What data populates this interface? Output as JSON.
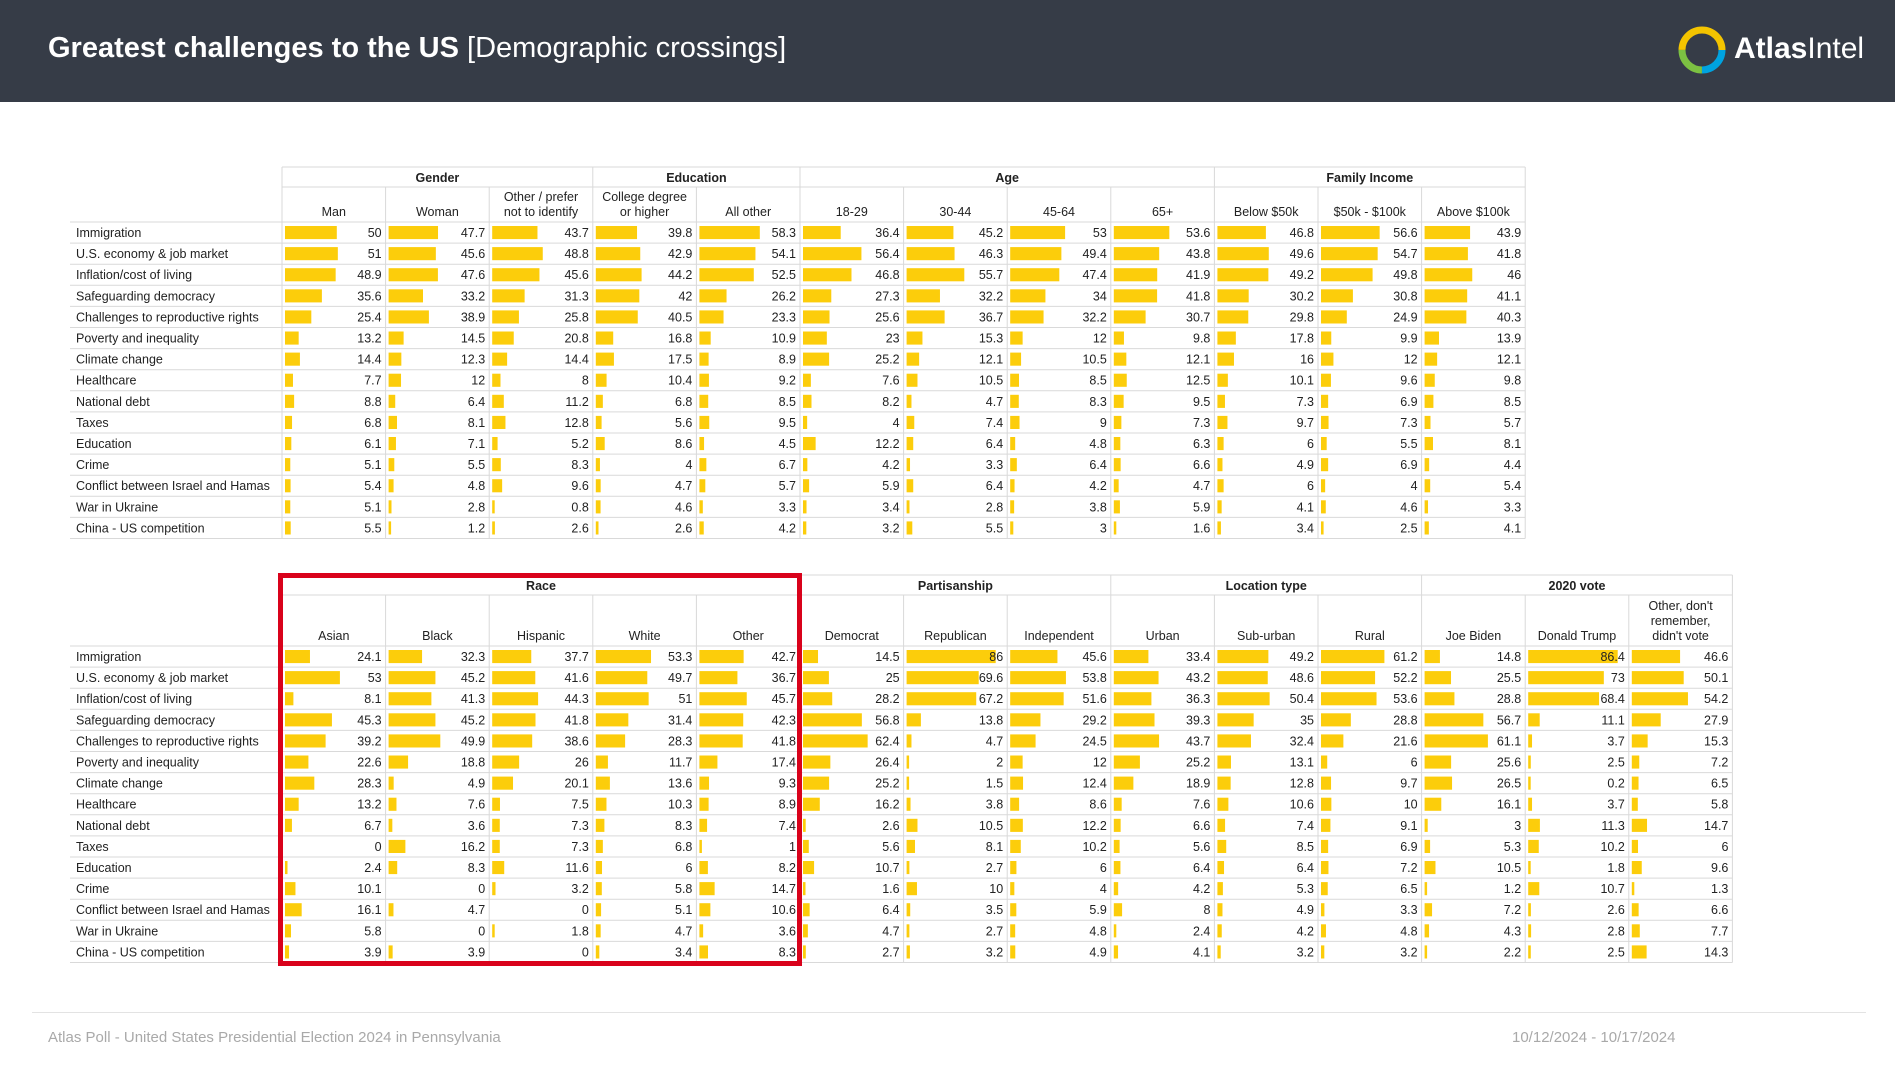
{
  "header": {
    "title_bold": "Greatest challenges to the US",
    "title_rest": " [Demographic crossings]",
    "brand_bold": "Atlas",
    "brand_rest": "Intel"
  },
  "colors": {
    "bar": "#fccd0b",
    "header_bg": "#363c47",
    "highlight": "#d9021b",
    "grid": "#d9d9d9"
  },
  "footer": {
    "left": "Atlas Poll - United States Presidential Election 2024 in Pennsylvania",
    "right": "10/12/2024 - 10/17/2024"
  },
  "chart_data": [
    {
      "type": "table",
      "title": "Greatest challenges to the US by Gender, Education, Age, Family Income",
      "categories": [
        "Immigration",
        "U.S. economy & job market",
        "Inflation/cost of living",
        "Safeguarding democracy",
        "Challenges to reproductive rights",
        "Poverty and inequality",
        "Climate change",
        "Healthcare",
        "National debt",
        "Taxes",
        "Education",
        "Crime",
        "Conflict between Israel and Hamas",
        "War in Ukraine",
        "China - US competition"
      ],
      "groups": [
        {
          "name": "Gender",
          "columns": [
            "Man",
            "Woman",
            "Other / prefer\nnot to identify"
          ]
        },
        {
          "name": "Education",
          "columns": [
            "College degree\nor higher",
            "All other"
          ]
        },
        {
          "name": "Age",
          "columns": [
            "18-29",
            "30-44",
            "45-64",
            "65+"
          ]
        },
        {
          "name": "Family Income",
          "columns": [
            "Below $50k",
            "$50k - $100k",
            "Above $100k"
          ]
        }
      ],
      "series": [
        {
          "name": "Man",
          "values": [
            50,
            51,
            48.9,
            35.6,
            25.4,
            13.2,
            14.4,
            7.7,
            8.8,
            6.8,
            6.1,
            5.1,
            5.4,
            5.1,
            5.5
          ]
        },
        {
          "name": "Woman",
          "values": [
            47.7,
            45.6,
            47.6,
            33.2,
            38.9,
            14.5,
            12.3,
            12,
            6.4,
            8.1,
            7.1,
            5.5,
            4.8,
            2.8,
            1.2
          ]
        },
        {
          "name": "Other / prefer not to identify",
          "values": [
            43.7,
            48.8,
            45.6,
            31.3,
            25.8,
            20.8,
            14.4,
            8,
            11.2,
            12.8,
            5.2,
            8.3,
            9.6,
            0.8,
            2.6
          ]
        },
        {
          "name": "College degree or higher",
          "values": [
            39.8,
            42.9,
            44.2,
            42,
            40.5,
            16.8,
            17.5,
            10.4,
            6.8,
            5.6,
            8.6,
            4,
            4.7,
            4.6,
            2.6
          ]
        },
        {
          "name": "All other",
          "values": [
            58.3,
            54.1,
            52.5,
            26.2,
            23.3,
            10.9,
            8.9,
            9.2,
            8.5,
            9.5,
            4.5,
            6.7,
            5.7,
            3.3,
            4.2
          ]
        },
        {
          "name": "18-29",
          "values": [
            36.4,
            56.4,
            46.8,
            27.3,
            25.6,
            23,
            25.2,
            7.6,
            8.2,
            4,
            12.2,
            4.2,
            5.9,
            3.4,
            3.2
          ]
        },
        {
          "name": "30-44",
          "values": [
            45.2,
            46.3,
            55.7,
            32.2,
            36.7,
            15.3,
            12.1,
            10.5,
            4.7,
            7.4,
            6.4,
            3.3,
            6.4,
            2.8,
            5.5
          ]
        },
        {
          "name": "45-64",
          "values": [
            53,
            49.4,
            47.4,
            34,
            32.2,
            12,
            10.5,
            8.5,
            8.3,
            9,
            4.8,
            6.4,
            4.2,
            3.8,
            3
          ]
        },
        {
          "name": "65+",
          "values": [
            53.6,
            43.8,
            41.9,
            41.8,
            30.7,
            9.8,
            12.1,
            12.5,
            9.5,
            7.3,
            6.3,
            6.6,
            4.7,
            5.9,
            1.6
          ]
        },
        {
          "name": "Below $50k",
          "values": [
            46.8,
            49.6,
            49.2,
            30.2,
            29.8,
            17.8,
            16,
            10.1,
            7.3,
            9.7,
            6,
            4.9,
            6,
            4.1,
            3.4
          ]
        },
        {
          "name": "$50k - $100k",
          "values": [
            56.6,
            54.7,
            49.8,
            30.8,
            24.9,
            9.9,
            12,
            9.6,
            6.9,
            7.3,
            5.5,
            6.9,
            4,
            4.6,
            2.5
          ]
        },
        {
          "name": "Above $100k",
          "values": [
            43.9,
            41.8,
            46,
            41.1,
            40.3,
            13.9,
            12.1,
            9.8,
            8.5,
            5.7,
            8.1,
            4.4,
            5.4,
            3.3,
            4.1
          ]
        }
      ]
    },
    {
      "type": "table",
      "title": "Greatest challenges to the US by Race, Partisanship, Location type, 2020 vote",
      "categories": [
        "Immigration",
        "U.S. economy & job market",
        "Inflation/cost of living",
        "Safeguarding democracy",
        "Challenges to reproductive rights",
        "Poverty and inequality",
        "Climate change",
        "Healthcare",
        "National debt",
        "Taxes",
        "Education",
        "Crime",
        "Conflict between Israel and Hamas",
        "War in Ukraine",
        "China - US competition"
      ],
      "groups": [
        {
          "name": "Race",
          "columns": [
            "Asian",
            "Black",
            "Hispanic",
            "White",
            "Other"
          ]
        },
        {
          "name": "Partisanship",
          "columns": [
            "Democrat",
            "Republican",
            "Independent"
          ]
        },
        {
          "name": "Location type",
          "columns": [
            "Urban",
            "Sub-urban",
            "Rural"
          ]
        },
        {
          "name": "2020 vote",
          "columns": [
            "Joe Biden",
            "Donald Trump",
            "Other, don't\nremember,\ndidn't vote"
          ]
        }
      ],
      "series": [
        {
          "name": "Asian",
          "values": [
            24.1,
            53,
            8.1,
            45.3,
            39.2,
            22.6,
            28.3,
            13.2,
            6.7,
            0,
            2.4,
            10.1,
            16.1,
            5.8,
            3.9
          ]
        },
        {
          "name": "Black",
          "values": [
            32.3,
            45.2,
            41.3,
            45.2,
            49.9,
            18.8,
            4.9,
            7.6,
            3.6,
            16.2,
            8.3,
            0,
            4.7,
            0,
            3.9
          ]
        },
        {
          "name": "Hispanic",
          "values": [
            37.7,
            41.6,
            44.3,
            41.8,
            38.6,
            26,
            20.1,
            7.5,
            7.3,
            7.3,
            11.6,
            3.2,
            0,
            1.8,
            0
          ]
        },
        {
          "name": "White",
          "values": [
            53.3,
            49.7,
            51,
            31.4,
            28.3,
            11.7,
            13.6,
            10.3,
            8.3,
            6.8,
            6,
            5.8,
            5.1,
            4.7,
            3.4
          ]
        },
        {
          "name": "Other",
          "values": [
            42.7,
            36.7,
            45.7,
            42.3,
            41.8,
            17.4,
            9.3,
            8.9,
            7.4,
            1,
            8.2,
            14.7,
            10.6,
            3.6,
            8.3
          ]
        },
        {
          "name": "Democrat",
          "values": [
            14.5,
            25,
            28.2,
            56.8,
            62.4,
            26.4,
            25.2,
            16.2,
            2.6,
            5.6,
            10.7,
            1.6,
            6.4,
            4.7,
            2.7
          ]
        },
        {
          "name": "Republican",
          "values": [
            86,
            69.6,
            67.2,
            13.8,
            4.7,
            2,
            1.5,
            3.8,
            10.5,
            8.1,
            2.7,
            10,
            3.5,
            2.7,
            3.2
          ]
        },
        {
          "name": "Independent",
          "values": [
            45.6,
            53.8,
            51.6,
            29.2,
            24.5,
            12,
            12.4,
            8.6,
            12.2,
            10.2,
            6,
            4,
            5.9,
            4.8,
            4.9
          ]
        },
        {
          "name": "Urban",
          "values": [
            33.4,
            43.2,
            36.3,
            39.3,
            43.7,
            25.2,
            18.9,
            7.6,
            6.6,
            5.6,
            6.4,
            4.2,
            8,
            2.4,
            4.1
          ]
        },
        {
          "name": "Sub-urban",
          "values": [
            49.2,
            48.6,
            50.4,
            35,
            32.4,
            13.1,
            12.8,
            10.6,
            7.4,
            8.5,
            6.4,
            5.3,
            4.9,
            4.2,
            3.2
          ]
        },
        {
          "name": "Rural",
          "values": [
            61.2,
            52.2,
            53.6,
            28.8,
            21.6,
            6,
            9.7,
            10,
            9.1,
            6.9,
            7.2,
            6.5,
            3.3,
            4.8,
            3.2
          ]
        },
        {
          "name": "Joe Biden",
          "values": [
            14.8,
            25.5,
            28.8,
            56.7,
            61.1,
            25.6,
            26.5,
            16.1,
            3,
            5.3,
            10.5,
            1.2,
            7.2,
            4.3,
            2.2
          ]
        },
        {
          "name": "Donald Trump",
          "values": [
            86.4,
            73,
            68.4,
            11.1,
            3.7,
            2.5,
            0.2,
            3.7,
            11.3,
            10.2,
            1.8,
            10.7,
            2.6,
            2.8,
            2.5
          ]
        },
        {
          "name": "Other, don't remember, didn't vote",
          "values": [
            46.6,
            50.1,
            54.2,
            27.9,
            15.3,
            7.2,
            6.5,
            5.8,
            14.7,
            6,
            9.6,
            1.3,
            6.6,
            7.7,
            14.3
          ]
        }
      ]
    }
  ]
}
